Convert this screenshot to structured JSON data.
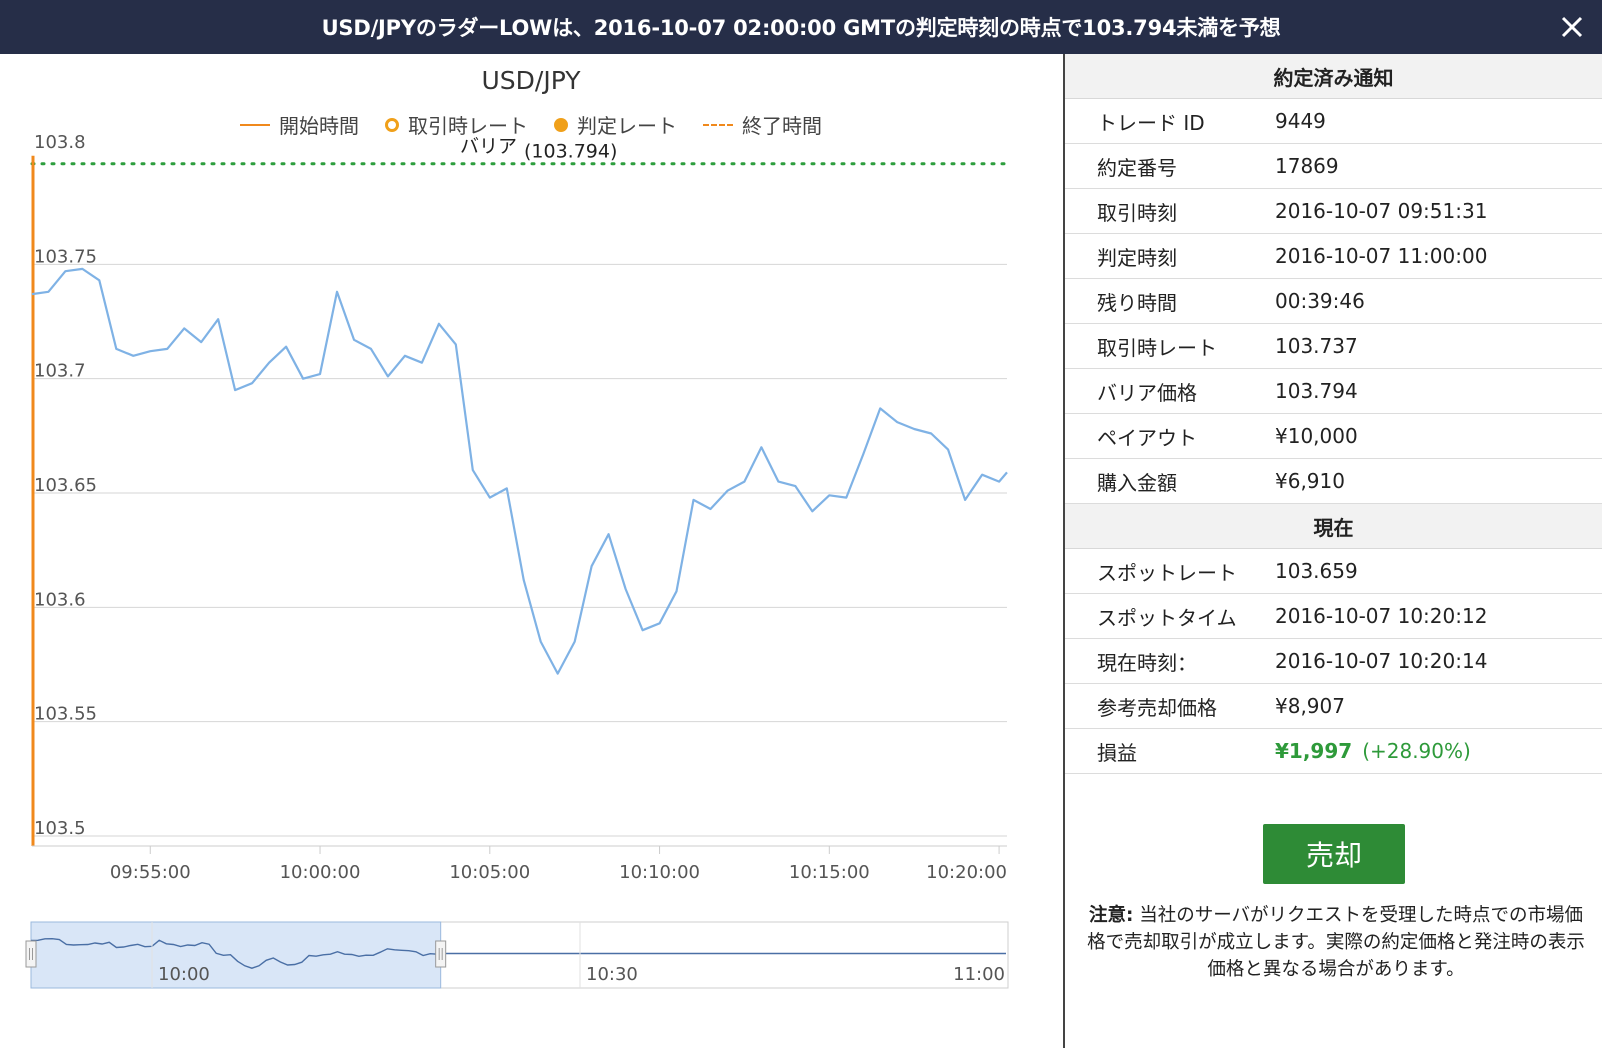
{
  "header": {
    "message": "USD/JPYのラダーLOWは、2016-10-07 02:00:00 GMTの判定時刻の時点で103.794未満を予想",
    "close_icon": "close-icon"
  },
  "chart_data": {
    "type": "line",
    "title": "USD/JPY",
    "legend": [
      "開始時間",
      "取引時レート",
      "判定レート",
      "終了時間"
    ],
    "barrier_label": "バリア",
    "barrier_value_label": "(103.794)",
    "barrier": 103.794,
    "ylim": [
      103.5,
      103.8
    ],
    "yticks": [
      "103.8",
      "103.75",
      "103.7",
      "103.65",
      "103.6",
      "103.55",
      "103.5"
    ],
    "xlim": [
      "09:51:31",
      "10:20:14"
    ],
    "xticks": [
      "09:55:00",
      "10:00:00",
      "10:05:00",
      "10:10:00",
      "10:15:00",
      "10:20:00"
    ],
    "x": [
      "09:51:31",
      "09:52:00",
      "09:52:30",
      "09:53:00",
      "09:53:30",
      "09:54:00",
      "09:54:30",
      "09:55:00",
      "09:55:30",
      "09:56:00",
      "09:56:30",
      "09:57:00",
      "09:57:30",
      "09:58:00",
      "09:58:30",
      "09:59:00",
      "09:59:30",
      "10:00:00",
      "10:00:30",
      "10:01:00",
      "10:01:30",
      "10:02:00",
      "10:02:30",
      "10:03:00",
      "10:03:30",
      "10:04:00",
      "10:04:30",
      "10:05:00",
      "10:05:30",
      "10:06:00",
      "10:06:30",
      "10:07:00",
      "10:07:30",
      "10:08:00",
      "10:08:30",
      "10:09:00",
      "10:09:30",
      "10:10:00",
      "10:10:30",
      "10:11:00",
      "10:11:30",
      "10:12:00",
      "10:12:30",
      "10:13:00",
      "10:13:30",
      "10:14:00",
      "10:14:30",
      "10:15:00",
      "10:15:30",
      "10:16:00",
      "10:16:30",
      "10:17:00",
      "10:17:30",
      "10:18:00",
      "10:18:30",
      "10:19:00",
      "10:19:30",
      "10:20:00",
      "10:20:14"
    ],
    "y": [
      103.737,
      103.738,
      103.747,
      103.748,
      103.743,
      103.713,
      103.71,
      103.712,
      103.713,
      103.722,
      103.716,
      103.726,
      103.695,
      103.698,
      103.707,
      103.714,
      103.7,
      103.702,
      103.738,
      103.717,
      103.713,
      103.701,
      103.71,
      103.707,
      103.724,
      103.715,
      103.66,
      103.648,
      103.652,
      103.612,
      103.585,
      103.571,
      103.585,
      103.618,
      103.632,
      103.608,
      103.59,
      103.593,
      103.607,
      103.647,
      103.643,
      103.651,
      103.655,
      103.67,
      103.655,
      103.653,
      103.642,
      103.649,
      103.648,
      103.667,
      103.687,
      103.681,
      103.678,
      103.676,
      103.669,
      103.647,
      103.658,
      103.655,
      103.659
    ],
    "navigator": {
      "xticks": [
        "10:00",
        "10:30",
        "11:00"
      ]
    },
    "grid": true,
    "colors": {
      "line": "#7fb2e5",
      "barrier": "#2e9e3e",
      "start_line": "#f0891c",
      "nav_mask": "#cfe0f5"
    }
  },
  "info": {
    "contract_title": "約定済み通知",
    "contract_rows": [
      {
        "k": "トレード ID",
        "v": "9449"
      },
      {
        "k": "約定番号",
        "v": "17869"
      },
      {
        "k": "取引時刻",
        "v": "2016-10-07 09:51:31"
      },
      {
        "k": "判定時刻",
        "v": "2016-10-07 11:00:00"
      },
      {
        "k": "残り時間",
        "v": "00:39:46"
      },
      {
        "k": "取引時レート",
        "v": "103.737"
      },
      {
        "k": "バリア価格",
        "v": "103.794"
      },
      {
        "k": "ペイアウト",
        "v": "¥10,000"
      },
      {
        "k": "購入金額",
        "v": "¥6,910"
      }
    ],
    "current_title": "現在",
    "current_rows": [
      {
        "k": "スポットレート",
        "v": "103.659"
      },
      {
        "k": "スポットタイム",
        "v": "2016-10-07 10:20:12"
      },
      {
        "k": "現在時刻：",
        "v": "2016-10-07 10:20:14"
      },
      {
        "k": "参考売却価格",
        "v": "¥8,907"
      }
    ],
    "pl_label": "損益",
    "pl_amount": "¥1,997",
    "pl_percent": "(+28.90%)",
    "sell_label": "売却",
    "note_label": "注意:",
    "note_text": "当社のサーバがリクエストを受理した時点での市場価格で売却取引が成立します。実際の約定価格と発注時の表示価格と異なる場合があります。"
  }
}
